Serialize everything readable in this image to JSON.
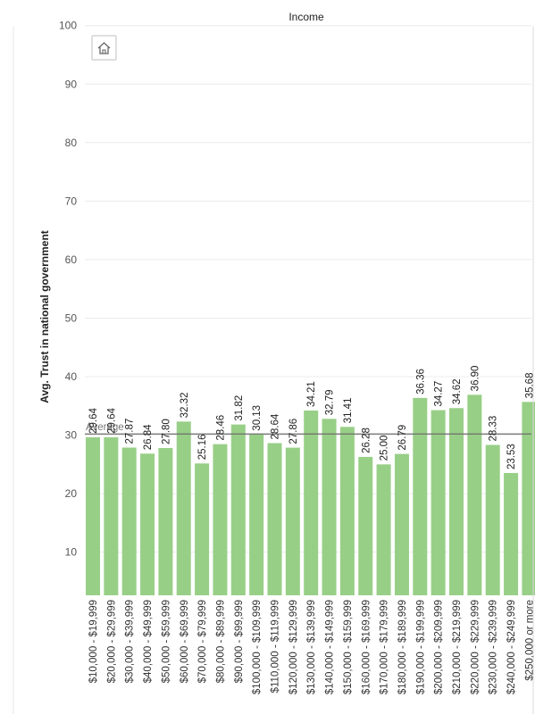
{
  "chart_data": {
    "type": "bar",
    "title": "Income",
    "ylabel": "Avg. Trust in national government",
    "xlabel": "",
    "ylim": [
      0,
      100
    ],
    "yticks": [
      10,
      20,
      30,
      40,
      50,
      60,
      70,
      80,
      90,
      100
    ],
    "grid": true,
    "bar_color": "#98cf87",
    "categories": [
      "$10,000 - $19,999",
      "$20,000 - $29,999",
      "$30,000 - $39,999",
      "$40,000 - $49,999",
      "$50,000 - $59,999",
      "$60,000 - $69,999",
      "$70,000 - $79,999",
      "$80,000 - $89,999",
      "$90,000 - $99,999",
      "$100,000 - $109,999",
      "$110,000 - $119,999",
      "$120,000 - $129,999",
      "$130,000 - $139,999",
      "$140,000 - $149,999",
      "$150,000 - $159,999",
      "$160,000 - $169,999",
      "$170,000 - $179,999",
      "$180,000 - $189,999",
      "$190,000 - $199,999",
      "$200,000 - $209,999",
      "$210,000 - $219,999",
      "$220,000 - $229,999",
      "$230,000 - $239,999",
      "$240,000 - $249,999",
      "$250,000 or more"
    ],
    "values": [
      29.64,
      29.64,
      27.87,
      26.84,
      27.8,
      32.32,
      25.16,
      28.46,
      31.82,
      30.13,
      28.64,
      27.86,
      34.21,
      32.79,
      31.41,
      26.28,
      25.0,
      26.79,
      36.36,
      34.27,
      34.62,
      36.9,
      28.33,
      23.53,
      35.68
    ],
    "data_labels": [
      "29.64",
      "29.64",
      "27.87",
      "26.84",
      "27.80",
      "32.32",
      "25.16",
      "28.46",
      "31.82",
      "30.13",
      "28.64",
      "27.86",
      "34.21",
      "32.79",
      "31.41",
      "26.28",
      "25.00",
      "26.79",
      "36.36",
      "34.27",
      "34.62",
      "36.90",
      "28.33",
      "23.53",
      "35.68"
    ],
    "reference_line": {
      "label": "Average",
      "value": 30.2
    }
  },
  "toolbar": {
    "home_icon": "home-icon"
  }
}
